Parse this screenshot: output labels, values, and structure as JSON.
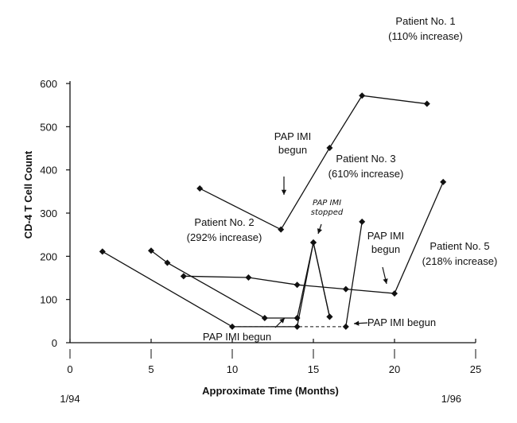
{
  "chart_data": {
    "type": "line",
    "xlabel": "Approximate Time (Months)",
    "ylabel": "CD-4 T Cell Count",
    "xlim": [
      0,
      25
    ],
    "ylim": [
      0,
      600
    ],
    "x_ticks": [
      0,
      5,
      10,
      15,
      20,
      25
    ],
    "y_ticks": [
      0,
      100,
      200,
      300,
      400,
      500,
      600
    ],
    "x_date_labels": [
      {
        "x": 0,
        "label": "1/94"
      },
      {
        "x": 23.5,
        "label": "1/96"
      }
    ],
    "series": [
      {
        "points": [
          [
            8,
            357
          ],
          [
            13,
            262
          ],
          [
            16,
            451
          ],
          [
            18,
            572
          ],
          [
            22,
            553
          ]
        ]
      },
      {
        "points": [
          [
            5,
            213
          ],
          [
            6,
            185
          ],
          [
            12,
            57
          ],
          [
            14,
            57
          ],
          [
            15,
            232
          ],
          [
            16,
            60
          ]
        ]
      },
      {
        "points": [
          [
            2,
            211
          ],
          [
            10,
            37
          ],
          [
            14,
            37
          ],
          [
            15,
            232
          ],
          [
            16,
            60
          ]
        ]
      },
      {
        "points": [
          [
            7,
            154
          ],
          [
            11,
            151
          ],
          [
            14,
            134
          ],
          [
            17,
            124
          ],
          [
            20,
            114
          ],
          [
            23,
            372
          ]
        ]
      },
      {
        "points": [
          [
            17,
            37
          ],
          [
            18,
            280
          ]
        ]
      }
    ],
    "dashed_segments": [
      [
        [
          10,
          37
        ],
        [
          17,
          37
        ]
      ],
      [
        [
          12,
          57
        ],
        [
          14,
          57
        ]
      ]
    ],
    "annotations": [
      {
        "lines": [
          "Patient No. 1",
          "(110%  increase)"
        ]
      },
      {
        "lines": [
          "PAP IMI",
          "begun"
        ]
      },
      {
        "lines": [
          "Patient No. 3",
          "(610% increase)"
        ]
      },
      {
        "lines": [
          "PAP IMI",
          "stopped"
        ]
      },
      {
        "lines": [
          "Patient No. 2",
          "(292%  increase)"
        ]
      },
      {
        "lines": [
          "PAP IMI",
          "begun"
        ]
      },
      {
        "lines": [
          "Patient No. 5",
          "(218% increase)"
        ]
      },
      {
        "lines": [
          "PAP IMI begun"
        ]
      },
      {
        "lines": [
          "PAP IMI begun"
        ]
      }
    ]
  }
}
